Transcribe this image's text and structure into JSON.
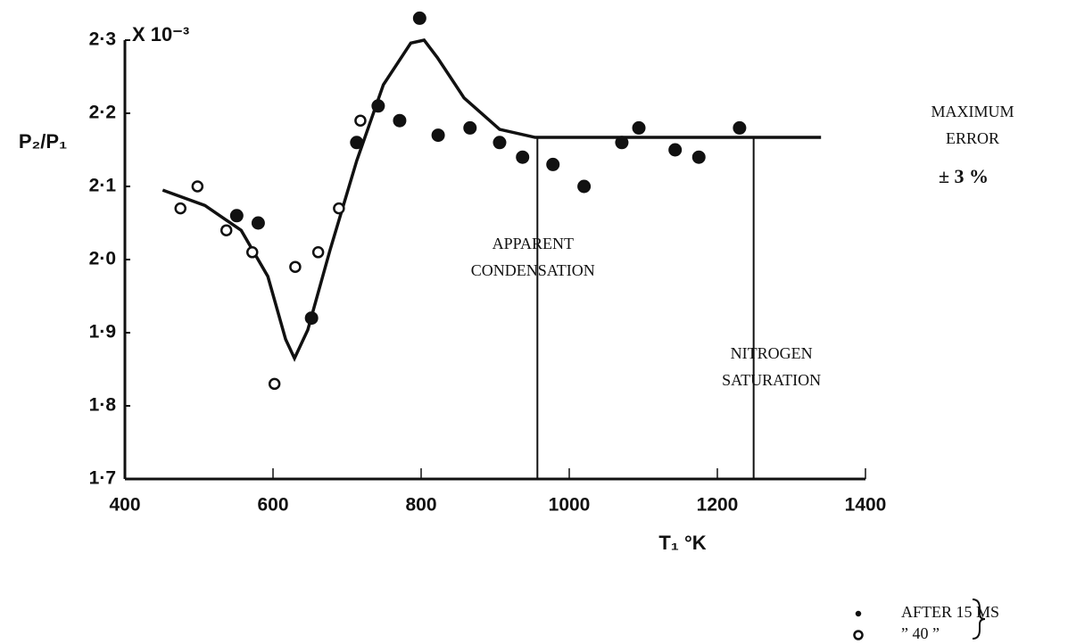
{
  "chart_data": {
    "type": "scatter",
    "y_label": "P₂/P₁",
    "x_label": "T₁ °K",
    "y_multiplier": "X 10⁻³",
    "xlim": [
      400,
      1400
    ],
    "xticks": [
      400,
      600,
      800,
      1000,
      1200,
      1400
    ],
    "ylim": [
      1.7,
      2.3
    ],
    "yticks": [
      {
        "value": 1.7,
        "label": "1·7"
      },
      {
        "value": 1.8,
        "label": "1·8"
      },
      {
        "value": 1.9,
        "label": "1·9"
      },
      {
        "value": 2.0,
        "label": "2·0"
      },
      {
        "value": 2.1,
        "label": "2·1"
      },
      {
        "value": 2.2,
        "label": "2·2"
      },
      {
        "value": 2.3,
        "label": "2·3"
      }
    ],
    "series": [
      {
        "name": "AFTER 15 MS",
        "marker": "filled",
        "color": "#111111",
        "x": [
          551,
          580,
          652,
          713,
          742,
          771,
          798,
          823,
          866,
          906,
          937,
          978,
          1020,
          1071,
          1094,
          1143,
          1175,
          1230
        ],
        "values": [
          2.06,
          2.05,
          1.92,
          2.16,
          2.21,
          2.19,
          2.33,
          2.17,
          2.18,
          2.16,
          2.14,
          2.13,
          2.1,
          2.16,
          2.18,
          2.15,
          2.14,
          2.18
        ]
      },
      {
        "name": "” 40 ”",
        "marker": "open",
        "color": "#111111",
        "x": [
          475,
          498,
          537,
          572,
          602,
          630,
          661,
          689,
          718
        ],
        "values": [
          2.07,
          2.1,
          2.04,
          2.01,
          1.83,
          1.99,
          2.01,
          2.07,
          2.19
        ]
      }
    ],
    "curve": {
      "color": "#111111",
      "x": [
        451,
        508,
        557,
        593,
        617,
        629,
        647,
        677,
        713,
        749,
        786,
        804,
        822,
        858,
        906,
        954,
        1340
      ],
      "values": [
        2.095,
        2.074,
        2.04,
        1.977,
        1.891,
        1.865,
        1.904,
        2.013,
        2.135,
        2.239,
        2.296,
        2.3,
        2.276,
        2.221,
        2.178,
        2.167,
        2.167
      ]
    },
    "markers": [
      {
        "x": 957,
        "y": 2.167,
        "lines": [
          "APPARENT",
          "CONDENSATION"
        ]
      },
      {
        "x": 1249,
        "y": 2.167,
        "lines": [
          "NITROGEN",
          "SATURATION"
        ]
      }
    ],
    "error_note": [
      "MAXIMUM",
      "ERROR",
      "± 3 %"
    ]
  }
}
